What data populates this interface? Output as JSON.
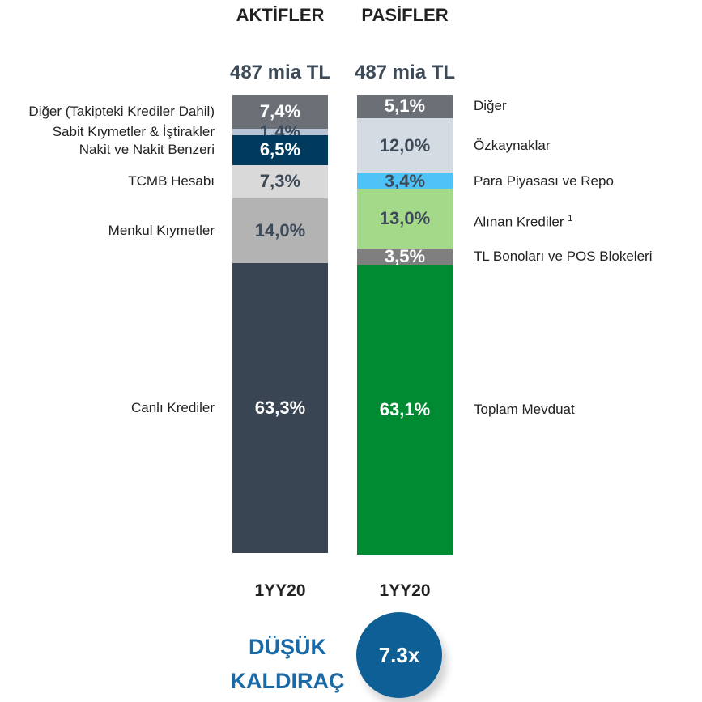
{
  "chart_data": {
    "type": "stacked_bar",
    "ylim": [
      0,
      100
    ],
    "bars": [
      {
        "header": "AKTİFLER",
        "total": "487 mia TL",
        "period": "1YY20",
        "segments": [
          {
            "name": "Diğer (Takipteki Krediler Dahil)",
            "value": 7.4,
            "value_label": "7,4%",
            "color": "#6b7077"
          },
          {
            "name": "Sabit Kıymetler & İştirakler",
            "value": 1.4,
            "value_label": "1,4%",
            "color": "#b8c4d6"
          },
          {
            "name": "Nakit ve Nakit Benzeri",
            "value": 6.5,
            "value_label": "6,5%",
            "color": "#003a5c"
          },
          {
            "name": "TCMB Hesabı",
            "value": 7.3,
            "value_label": "7,3%",
            "color": "#d9d9d9"
          },
          {
            "name": "Menkul Kıymetler",
            "value": 14.0,
            "value_label": "14,0%",
            "color": "#b3b3b3"
          },
          {
            "name": "Canlı Krediler",
            "value": 63.3,
            "value_label": "63,3%",
            "color": "#394553"
          }
        ]
      },
      {
        "header": "PASİFLER",
        "total": "487 mia TL",
        "period": "1YY20",
        "segments": [
          {
            "name": "Diğer",
            "value": 5.1,
            "value_label": "5,1%",
            "color": "#6b7077"
          },
          {
            "name": "Özkaynaklar",
            "value": 12.0,
            "value_label": "12,0%",
            "color": "#d5dbe3"
          },
          {
            "name": "Para Piyasası ve Repo",
            "value": 3.4,
            "value_label": "3,4%",
            "color": "#4fc3f7"
          },
          {
            "name": "Alınan Krediler",
            "footnote": "1",
            "value": 13.0,
            "value_label": "13,0%",
            "color": "#a5d98a"
          },
          {
            "name": "TL Bonoları ve POS Blokeleri",
            "value": 3.5,
            "value_label": "3,5%",
            "color": "#7f7f7f"
          },
          {
            "name": "Toplam Mevduat",
            "value": 63.1,
            "value_label": "63,1%",
            "color": "#008a32"
          }
        ]
      }
    ],
    "leverage": {
      "label": "DÜŞÜK KALDIRAÇ",
      "value": "7.3x"
    }
  }
}
